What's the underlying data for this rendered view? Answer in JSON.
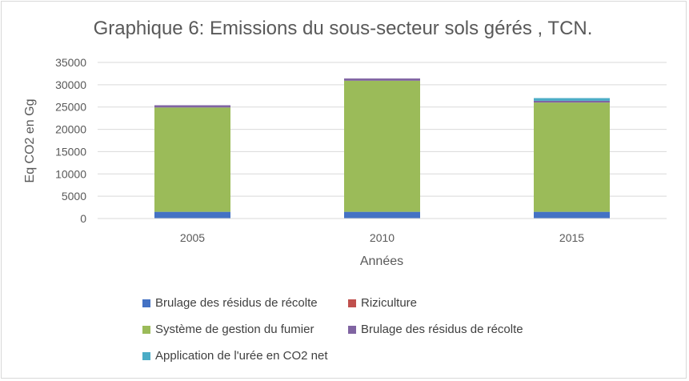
{
  "chart_data": {
    "type": "bar",
    "stacked": true,
    "title": "Graphique 6: Emissions du sous-secteur sols gérés , TCN.",
    "xlabel": "Années",
    "ylabel": "Eq CO2 en Gg",
    "ylim": [
      0,
      35000
    ],
    "yticks": [
      "0",
      "5000",
      "10000",
      "15000",
      "20000",
      "25000",
      "30000",
      "35000"
    ],
    "categories": [
      "2005",
      "2010",
      "2015"
    ],
    "grid": true,
    "legend_position": "bottom",
    "series": [
      {
        "name": "Brulage des résidus de récolte",
        "color": "#4472c4",
        "values": [
          1500,
          1500,
          1500
        ]
      },
      {
        "name": "Riziculture",
        "color": "#c0504d",
        "values": [
          0,
          0,
          0
        ]
      },
      {
        "name": "Système de gestion du fumier",
        "color": "#9bbb59",
        "values": [
          23400,
          29400,
          24500
        ]
      },
      {
        "name": "Brulage des résidus de récolte",
        "color": "#8064a2",
        "values": [
          500,
          500,
          400
        ]
      },
      {
        "name": "Application de l'urée en CO2 net",
        "color": "#4bacc6",
        "values": [
          0,
          0,
          600
        ]
      }
    ]
  }
}
